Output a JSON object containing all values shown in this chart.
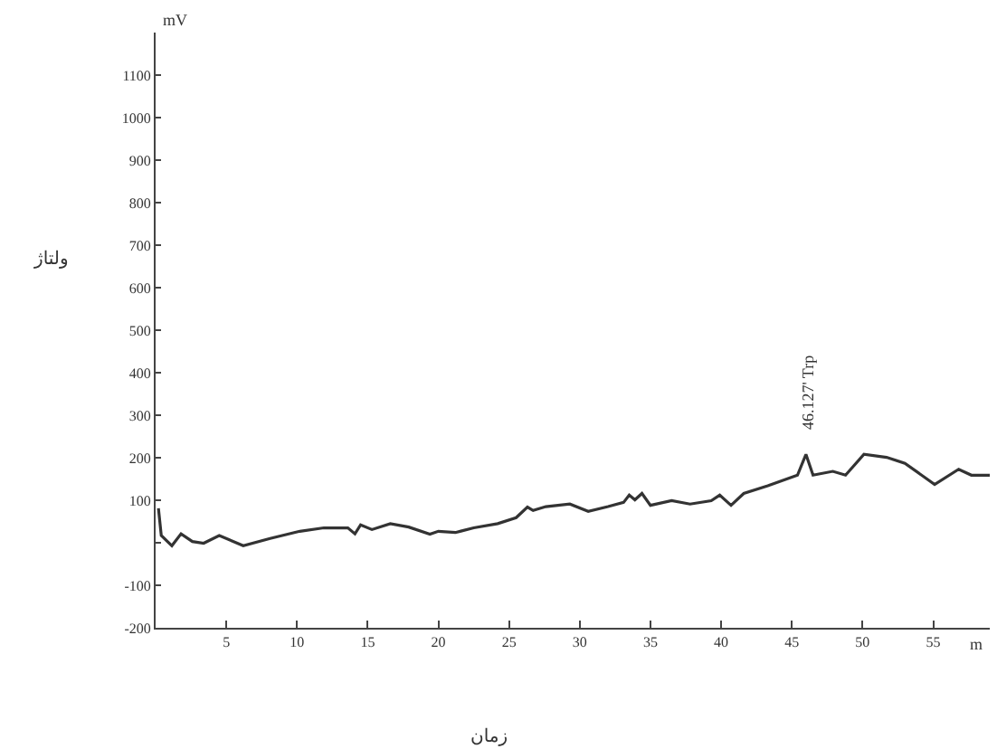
{
  "chart_data": {
    "type": "line",
    "xlabel": "زمان",
    "ylabel": "ولتاژ",
    "x": [
      0.2,
      0.4,
      1.15,
      1.8,
      2.6,
      3.4,
      4.5,
      6.2,
      8.1,
      10.2,
      11.9,
      13.6,
      14.1,
      14.5,
      15.3,
      16.6,
      17.9,
      19.4,
      20,
      21.2,
      22.5,
      24.2,
      25.5,
      26.3,
      26.7,
      27.6,
      29.3,
      30.6,
      32.0,
      33.1,
      33.5,
      33.9,
      34.4,
      35.0,
      36.5,
      37.8,
      39.3,
      39.9,
      40.7,
      41.6,
      43.3,
      45.4,
      46.0,
      46.5,
      47.9,
      48.8,
      50.1,
      51.7,
      53.0,
      55.1,
      56.8,
      57.7,
      59
    ],
    "series": [
      {
        "color": "#333333",
        "values": [
          81,
          17,
          -7,
          21,
          3,
          -1,
          17,
          -7,
          10,
          27,
          35,
          35,
          21,
          42,
          31,
          45,
          37,
          20,
          27,
          24,
          35,
          45,
          59,
          84,
          76,
          85,
          91,
          74,
          85,
          95,
          112,
          101,
          116,
          88,
          99,
          91,
          99,
          112,
          88,
          116,
          134,
          159,
          208,
          159,
          168,
          159,
          208,
          201,
          187,
          137,
          173,
          159,
          159
        ]
      }
    ],
    "xlim": [
      0,
      59
    ],
    "xticks": [
      5,
      10,
      15,
      20,
      25,
      30,
      35,
      40,
      45,
      50,
      55
    ],
    "ylim": [
      -200,
      1200
    ],
    "yticks": [
      -200,
      -100,
      {
        "value": 0,
        "label": null
      },
      100,
      200,
      300,
      400,
      500,
      600,
      700,
      800,
      900,
      1000,
      1100
    ],
    "grid": false,
    "marker": "none",
    "line_style": "solid",
    "annotations": [
      {
        "text": "46.127' Trp",
        "x": 46.127,
        "y": 208
      },
      "mV",
      "m"
    ]
  }
}
